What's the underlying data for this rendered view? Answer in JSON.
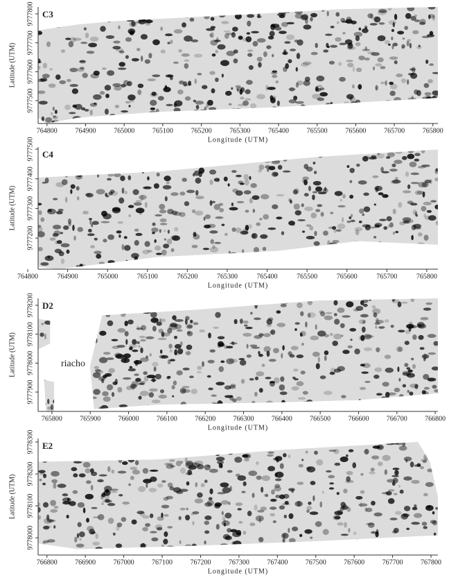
{
  "panels": [
    {
      "label": "C3",
      "x_label": "Longitude (UTM)",
      "y_label": "Latitude (UTM)",
      "xlim": [
        764777,
        765813
      ],
      "ylim": [
        9777421,
        9777824
      ],
      "xticks": [
        764800,
        764900,
        765000,
        765100,
        765200,
        765300,
        765400,
        765500,
        765600,
        765700,
        765800
      ],
      "yticks": [
        9777500,
        9777600,
        9777700,
        9777800
      ]
    },
    {
      "label": "C4",
      "x_label": "Longitude (UTM)",
      "y_label": "Latitude (UTM)",
      "xlim": [
        764826,
        765828
      ],
      "ylim": [
        9777095,
        9777507
      ],
      "xticks": [
        764800,
        764900,
        765000,
        765100,
        765200,
        765300,
        765400,
        765500,
        765600,
        765700,
        765800
      ],
      "yticks": [
        9777200,
        9777300,
        9777400,
        9777500
      ]
    },
    {
      "label": "D2",
      "x_label": "Longitude (UTM)",
      "y_label": "Latitude (UTM)",
      "annotation": "riacho",
      "xlim": [
        765764,
        766807
      ],
      "ylim": [
        9777833,
        9778224
      ],
      "xticks": [
        765800,
        765900,
        766000,
        766100,
        766200,
        766300,
        766400,
        766500,
        766600,
        766700,
        766800
      ],
      "yticks": [
        9777900,
        9778000,
        9778100,
        9778200
      ]
    },
    {
      "label": "E2",
      "x_label": "Longitude (UTM)",
      "y_label": "Latitude (UTM)",
      "xlim": [
        766777,
        767818
      ],
      "ylim": [
        9777946,
        9778311
      ],
      "xticks": [
        766800,
        766900,
        767000,
        767100,
        767200,
        767300,
        767400,
        767500,
        767600,
        767700,
        767800
      ],
      "yticks": [
        9778000,
        9778100,
        9778200,
        9778300
      ]
    }
  ]
}
